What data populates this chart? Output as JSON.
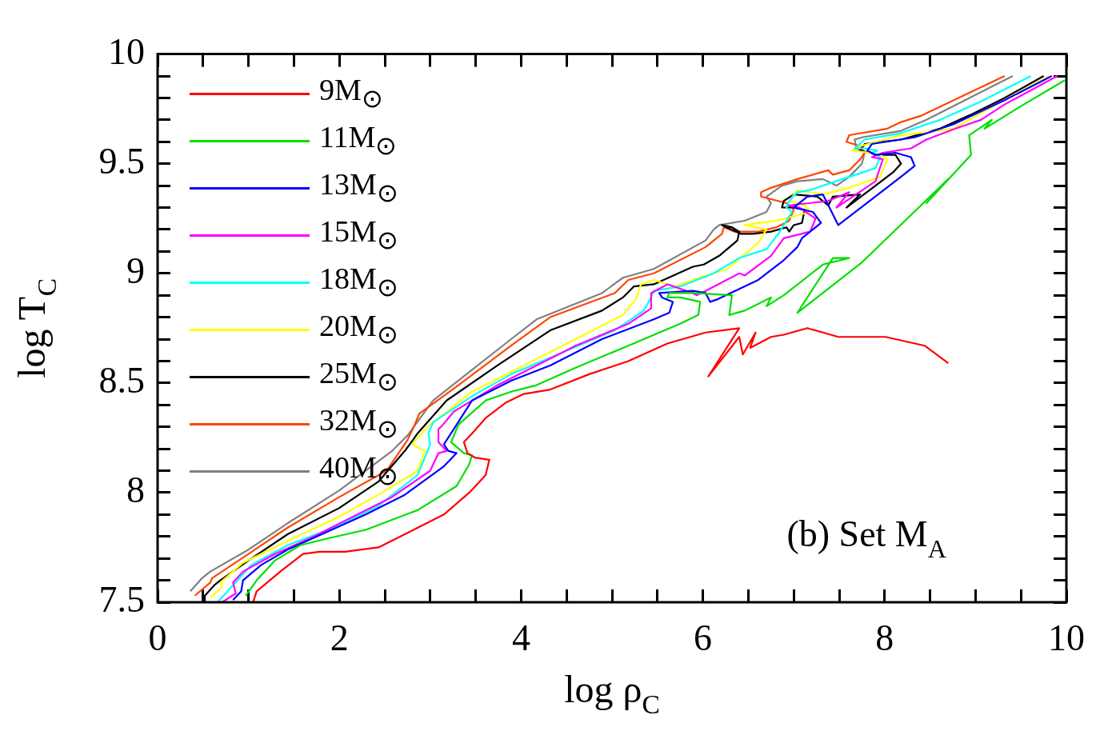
{
  "chart_data": {
    "type": "line",
    "xlabel": "log ρ$_{C}$",
    "ylabel": "log T$_{C}$",
    "xlim": [
      0,
      10
    ],
    "ylim": [
      7.5,
      10
    ],
    "xticks": [
      0,
      {
        "value": 0.5,
        "label": null
      },
      {
        "value": 1,
        "label": null
      },
      {
        "value": 1.5,
        "label": null
      },
      2,
      {
        "value": 2.5,
        "label": null
      },
      {
        "value": 3,
        "label": null
      },
      {
        "value": 3.5,
        "label": null
      },
      4,
      {
        "value": 4.5,
        "label": null
      },
      {
        "value": 5,
        "label": null
      },
      {
        "value": 5.5,
        "label": null
      },
      6,
      {
        "value": 6.5,
        "label": null
      },
      {
        "value": 7,
        "label": null
      },
      {
        "value": 7.5,
        "label": null
      },
      8,
      {
        "value": 8.5,
        "label": null
      },
      {
        "value": 9,
        "label": null
      },
      {
        "value": 9.5,
        "label": null
      },
      10
    ],
    "yticks": [
      7.5,
      {
        "value": 7.6,
        "label": null
      },
      {
        "value": 7.7,
        "label": null
      },
      {
        "value": 7.8,
        "label": null
      },
      {
        "value": 7.9,
        "label": null
      },
      8,
      {
        "value": 8.1,
        "label": null
      },
      {
        "value": 8.2,
        "label": null
      },
      {
        "value": 8.3,
        "label": null
      },
      {
        "value": 8.4,
        "label": null
      },
      8.5,
      {
        "value": 8.6,
        "label": null
      },
      {
        "value": 8.7,
        "label": null
      },
      {
        "value": 8.8,
        "label": null
      },
      {
        "value": 8.9,
        "label": null
      },
      9,
      {
        "value": 9.1,
        "label": null
      },
      {
        "value": 9.2,
        "label": null
      },
      {
        "value": 9.3,
        "label": null
      },
      {
        "value": 9.4,
        "label": null
      },
      9.5,
      {
        "value": 9.6,
        "label": null
      },
      {
        "value": 9.7,
        "label": null
      },
      {
        "value": 9.8,
        "label": null
      },
      {
        "value": 9.9,
        "label": null
      },
      10
    ],
    "grid": false,
    "legend": "top left",
    "marker": "none",
    "line_style": "solid",
    "annotations": [
      "(b) Set M$_{A}$"
    ],
    "series": [
      {
        "name": "9M$_{⊙}$",
        "color": "#ff0000",
        "x": [
          1.05,
          1.09,
          1.35,
          1.6,
          1.78,
          2.06,
          2.43,
          2.72,
          3.15,
          3.43,
          3.61,
          3.65,
          3.49,
          3.41,
          3.37,
          3.46,
          3.61,
          3.83,
          4.03,
          4.32,
          4.75,
          5.18,
          5.61,
          6.03,
          6.4,
          6.06,
          6.4,
          6.44,
          6.58,
          6.52,
          6.75,
          6.89,
          7.15,
          7.49,
          8.01,
          8.44,
          8.7
        ],
        "values": [
          7.5,
          7.55,
          7.64,
          7.72,
          7.73,
          7.73,
          7.75,
          7.81,
          7.9,
          8.0,
          8.08,
          8.15,
          8.16,
          8.18,
          8.23,
          8.27,
          8.34,
          8.41,
          8.45,
          8.47,
          8.54,
          8.6,
          8.68,
          8.73,
          8.75,
          8.53,
          8.71,
          8.63,
          8.73,
          8.66,
          8.71,
          8.72,
          8.75,
          8.71,
          8.71,
          8.67,
          8.59
        ]
      },
      {
        "name": "11M$_{⊙}$",
        "color": "#00e000",
        "x": [
          0.97,
          1.09,
          1.29,
          1.57,
          1.86,
          2.29,
          2.86,
          3.29,
          3.43,
          3.46,
          3.37,
          3.23,
          3.31,
          3.61,
          3.89,
          4.17,
          4.6,
          5.18,
          5.75,
          5.95,
          5.97,
          5.75,
          5.61,
          5.63,
          5.89,
          6.32,
          6.29,
          6.46,
          6.75,
          6.7,
          6.89,
          7.32,
          7.61,
          7.43,
          7.04,
          7.75,
          8.7,
          8.46,
          8.95,
          8.93,
          9.18,
          9.1,
          9.49,
          9.98
        ],
        "values": [
          7.53,
          7.6,
          7.69,
          7.76,
          7.79,
          7.83,
          7.92,
          8.03,
          8.13,
          8.17,
          8.18,
          8.23,
          8.31,
          8.42,
          8.46,
          8.49,
          8.57,
          8.67,
          8.77,
          8.81,
          8.87,
          8.89,
          8.89,
          8.91,
          8.91,
          8.9,
          8.81,
          8.83,
          8.89,
          8.85,
          8.9,
          9.04,
          9.07,
          9.07,
          8.82,
          9.05,
          9.43,
          9.32,
          9.54,
          9.63,
          9.7,
          9.66,
          9.76,
          9.88
        ]
      },
      {
        "name": "13M$_{⊙}$",
        "color": "#0000ff",
        "x": [
          0.83,
          0.92,
          0.94,
          1.14,
          1.43,
          1.86,
          2.29,
          2.72,
          3.15,
          3.29,
          3.2,
          3.15,
          3.26,
          3.46,
          3.89,
          4.32,
          4.89,
          5.46,
          5.63,
          5.67,
          5.55,
          5.52,
          5.89,
          6.03,
          6.08,
          6.15,
          6.61,
          6.89,
          7.04,
          7.09,
          7.3,
          7.21,
          7.0,
          7.15,
          7.32,
          7.49,
          8.21,
          8.33,
          8.29,
          8.12,
          7.9,
          7.81,
          7.86,
          8.33,
          8.76,
          9.32,
          9.84
        ],
        "values": [
          7.51,
          7.55,
          7.6,
          7.67,
          7.74,
          7.82,
          7.9,
          7.99,
          8.12,
          8.18,
          8.19,
          8.22,
          8.29,
          8.42,
          8.51,
          8.58,
          8.7,
          8.79,
          8.82,
          8.87,
          8.89,
          8.91,
          8.92,
          8.91,
          8.87,
          8.88,
          8.97,
          9.06,
          9.12,
          9.16,
          9.23,
          9.28,
          9.3,
          9.35,
          9.36,
          9.22,
          9.45,
          9.49,
          9.53,
          9.55,
          9.54,
          9.56,
          9.59,
          9.62,
          9.68,
          9.79,
          9.9
        ]
      },
      {
        "name": "15M$_{⊙}$",
        "color": "#ff00ff",
        "x": [
          0.71,
          0.86,
          0.83,
          0.94,
          1.29,
          1.72,
          2.15,
          2.58,
          3.0,
          3.09,
          3.18,
          3.09,
          3.09,
          3.12,
          3.26,
          3.74,
          4.17,
          4.6,
          5.18,
          5.43,
          5.43,
          5.61,
          5.89,
          5.93,
          6.03,
          6.4,
          6.46,
          6.75,
          6.89,
          7.18,
          7.24,
          7.06,
          6.95,
          7.38,
          7.61,
          7.47,
          7.9,
          7.98,
          7.86,
          7.98,
          8.29,
          8.46,
          8.78,
          9.06,
          9.32,
          9.9
        ],
        "values": [
          7.5,
          7.54,
          7.59,
          7.64,
          7.72,
          7.8,
          7.89,
          7.98,
          8.1,
          8.18,
          8.19,
          8.23,
          8.29,
          8.3,
          8.37,
          8.49,
          8.58,
          8.67,
          8.77,
          8.84,
          8.91,
          8.95,
          8.91,
          8.9,
          8.92,
          9.0,
          8.99,
          9.08,
          9.16,
          9.19,
          9.25,
          9.3,
          9.31,
          9.33,
          9.37,
          9.3,
          9.42,
          9.52,
          9.53,
          9.55,
          9.57,
          9.61,
          9.66,
          9.7,
          9.77,
          9.9
        ]
      },
      {
        "name": "18M$_{⊙}$",
        "color": "#00ffff",
        "x": [
          0.66,
          0.77,
          1.03,
          1.43,
          2.0,
          2.43,
          2.86,
          2.94,
          3.0,
          2.98,
          3.03,
          3.46,
          3.89,
          4.46,
          5.03,
          5.35,
          5.43,
          5.46,
          5.75,
          6.12,
          6.4,
          6.7,
          6.83,
          6.98,
          6.92,
          6.95,
          7.04,
          7.18,
          7.32,
          7.9,
          7.95,
          7.86,
          7.92,
          7.78,
          7.67,
          7.78,
          8.18,
          8.61,
          9.04,
          9.61
        ],
        "values": [
          7.5,
          7.55,
          7.67,
          7.76,
          7.85,
          7.94,
          8.08,
          8.16,
          8.22,
          8.27,
          8.32,
          8.44,
          8.54,
          8.64,
          8.74,
          8.83,
          8.89,
          8.92,
          8.94,
          9.0,
          9.07,
          9.11,
          9.18,
          9.28,
          9.3,
          9.33,
          9.37,
          9.38,
          9.4,
          9.48,
          9.53,
          9.55,
          9.56,
          9.57,
          9.57,
          9.61,
          9.64,
          9.7,
          9.78,
          9.9
        ]
      },
      {
        "name": "20M$_{⊙}$",
        "color": "#ffff00",
        "x": [
          0.58,
          0.71,
          0.69,
          0.94,
          1.43,
          2.0,
          2.43,
          2.86,
          2.94,
          2.8,
          2.97,
          3.46,
          4.03,
          4.6,
          5.12,
          5.26,
          5.32,
          5.46,
          5.69,
          6.03,
          6.27,
          6.61,
          6.7,
          6.46,
          6.81,
          7.18,
          7.12,
          6.95,
          7.04,
          7.32,
          7.61,
          7.95,
          8.03,
          7.95,
          7.84,
          7.64,
          7.73,
          8.18,
          8.76,
          9.27,
          9.81
        ],
        "values": [
          7.52,
          7.57,
          7.59,
          7.68,
          7.78,
          7.89,
          7.99,
          8.1,
          8.19,
          8.22,
          8.3,
          8.46,
          8.58,
          8.7,
          8.81,
          8.88,
          8.95,
          8.97,
          8.94,
          8.99,
          9.02,
          9.14,
          9.2,
          9.22,
          9.24,
          9.28,
          9.31,
          9.33,
          9.38,
          9.36,
          9.39,
          9.44,
          9.52,
          9.54,
          9.55,
          9.56,
          9.58,
          9.63,
          9.66,
          9.78,
          9.9
        ]
      },
      {
        "name": "25M$_{⊙}$",
        "color": "#000000",
        "x": [
          0.52,
          0.52,
          0.63,
          0.69,
          1.0,
          1.43,
          2.0,
          2.43,
          2.72,
          2.81,
          2.86,
          3.18,
          3.74,
          4.32,
          4.89,
          5.12,
          5.24,
          5.46,
          5.89,
          6.01,
          6.18,
          6.38,
          6.4,
          6.32,
          6.21,
          6.42,
          6.55,
          6.75,
          6.92,
          6.95,
          7.0,
          7.09,
          7.12,
          7.0,
          6.87,
          6.89,
          7.0,
          7.26,
          7.38,
          7.43,
          7.73,
          7.58,
          7.9,
          8.09,
          8.18,
          8.12,
          7.9,
          7.84,
          7.73,
          7.78,
          8.18,
          8.61,
          8.93,
          9.32,
          9.75
        ],
        "values": [
          7.5,
          7.53,
          7.58,
          7.6,
          7.69,
          7.81,
          7.93,
          8.05,
          8.19,
          8.24,
          8.27,
          8.42,
          8.58,
          8.74,
          8.83,
          8.89,
          8.94,
          8.95,
          9.03,
          9.04,
          9.08,
          9.15,
          9.19,
          9.21,
          9.22,
          9.18,
          9.18,
          9.19,
          9.21,
          9.19,
          9.22,
          9.23,
          9.29,
          9.3,
          9.3,
          9.33,
          9.36,
          9.35,
          9.31,
          9.35,
          9.36,
          9.3,
          9.4,
          9.46,
          9.5,
          9.54,
          9.54,
          9.55,
          9.56,
          9.59,
          9.61,
          9.66,
          9.72,
          9.8,
          9.9
        ]
      },
      {
        "name": "32M$_{⊙}$",
        "color": "#ff4500",
        "x": [
          0.41,
          0.58,
          0.6,
          1.0,
          1.43,
          2.0,
          2.52,
          2.75,
          2.83,
          2.88,
          3.31,
          3.89,
          4.32,
          5.03,
          5.18,
          5.46,
          6.03,
          6.21,
          6.23,
          6.35,
          6.61,
          6.81,
          6.95,
          7.0,
          6.92,
          6.64,
          6.64,
          6.75,
          7.04,
          7.38,
          7.43,
          7.61,
          7.73,
          7.78,
          7.73,
          7.58,
          7.61,
          8.03,
          8.18,
          8.41,
          9.32
        ],
        "values": [
          7.53,
          7.59,
          7.61,
          7.72,
          7.84,
          7.98,
          8.1,
          8.24,
          8.31,
          8.36,
          8.49,
          8.67,
          8.8,
          8.91,
          8.97,
          9.0,
          9.12,
          9.18,
          9.21,
          9.19,
          9.19,
          9.21,
          9.24,
          9.29,
          9.32,
          9.35,
          9.37,
          9.39,
          9.43,
          9.47,
          9.45,
          9.47,
          9.52,
          9.55,
          9.58,
          9.6,
          9.63,
          9.66,
          9.69,
          9.72,
          9.9
        ]
      },
      {
        "name": "40M$_{⊙}$",
        "color": "#808080",
        "x": [
          0.36,
          0.49,
          0.58,
          1.0,
          1.43,
          2.0,
          2.58,
          2.75,
          3.03,
          3.46,
          3.89,
          4.17,
          4.89,
          5.12,
          5.46,
          6.03,
          6.12,
          6.18,
          6.46,
          6.7,
          6.75,
          6.7,
          6.87,
          7.04,
          7.32,
          7.47,
          7.61,
          7.75,
          7.78,
          7.69,
          7.67,
          7.75,
          8.18,
          8.46,
          9.41
        ],
        "values": [
          7.55,
          7.61,
          7.64,
          7.74,
          7.86,
          8.01,
          8.19,
          8.26,
          8.42,
          8.56,
          8.7,
          8.79,
          8.91,
          8.98,
          9.02,
          9.15,
          9.2,
          9.22,
          9.24,
          9.28,
          9.32,
          9.35,
          9.4,
          9.42,
          9.43,
          9.4,
          9.44,
          9.5,
          9.55,
          9.57,
          9.61,
          9.62,
          9.65,
          9.7,
          9.9
        ]
      }
    ]
  }
}
